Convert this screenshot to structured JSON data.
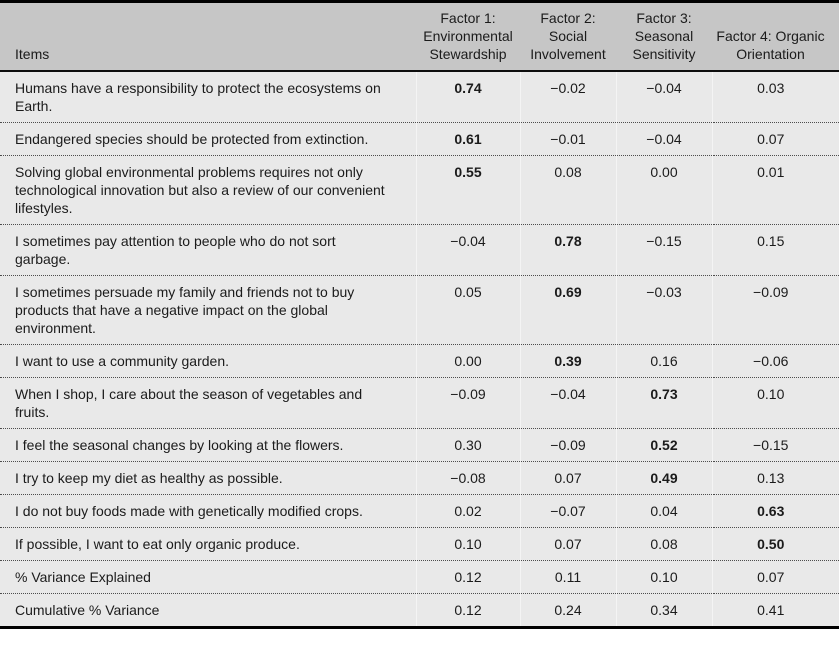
{
  "colors": {
    "header_bg": "#c6c6c6",
    "body_bg": "#e9e9e9",
    "rule": "#000000",
    "text": "#1b1b1b",
    "dotted": "#4d4d4d",
    "col_sep": "#f4f4f4"
  },
  "table": {
    "header": {
      "items_label": "Items",
      "factors": [
        "Factor 1: Environmental Stewardship",
        "Factor 2: Social Involvement",
        "Factor 3: Seasonal Sensitivity",
        "Factor 4: Organic Orientation"
      ]
    },
    "rows": [
      {
        "item": "Humans have a responsibility to protect the ecosystems on Earth.",
        "values": [
          "0.74",
          "−0.02",
          "−0.04",
          "0.03"
        ],
        "bold_col": 0
      },
      {
        "item": "Endangered species should be protected from extinc­tion.",
        "values": [
          "0.61",
          "−0.01",
          "−0.04",
          "0.07"
        ],
        "bold_col": 0
      },
      {
        "item": "Solving global environmental problems requires not only technological innovation but also a review of our convenient lifestyles.",
        "values": [
          "0.55",
          "0.08",
          "0.00",
          "0.01"
        ],
        "bold_col": 0
      },
      {
        "item": "I sometimes pay attention to people who do not sort garbage.",
        "values": [
          "−0.04",
          "0.78",
          "−0.15",
          "0.15"
        ],
        "bold_col": 1
      },
      {
        "item": "I sometimes persuade my family and friends not to buy products that have a negative impact on the global environment.",
        "values": [
          "0.05",
          "0.69",
          "−0.03",
          "−0.09"
        ],
        "bold_col": 1
      },
      {
        "item": "I want to use a community garden.",
        "values": [
          "0.00",
          "0.39",
          "0.16",
          "−0.06"
        ],
        "bold_col": 1
      },
      {
        "item": "When I shop, I care about the season of vegetables and fruits.",
        "values": [
          "−0.09",
          "−0.04",
          "0.73",
          "0.10"
        ],
        "bold_col": 2
      },
      {
        "item": "I feel the seasonal changes by looking at the flowers.",
        "values": [
          "0.30",
          "−0.09",
          "0.52",
          "−0.15"
        ],
        "bold_col": 2
      },
      {
        "item": "I try to keep my diet as healthy as possible.",
        "values": [
          "−0.08",
          "0.07",
          "0.49",
          "0.13"
        ],
        "bold_col": 2
      },
      {
        "item": "I do not buy foods made with genetically modified crops.",
        "values": [
          "0.02",
          "−0.07",
          "0.04",
          "0.63"
        ],
        "bold_col": 3
      },
      {
        "item": "If possible, I want to eat only organic produce.",
        "values": [
          "0.10",
          "0.07",
          "0.08",
          "0.50"
        ],
        "bold_col": 3
      },
      {
        "item": "% Variance Explained",
        "values": [
          "0.12",
          "0.11",
          "0.10",
          "0.07"
        ],
        "bold_col": null
      },
      {
        "item": "Cumulative % Variance",
        "values": [
          "0.12",
          "0.24",
          "0.34",
          "0.41"
        ],
        "bold_col": null
      }
    ]
  }
}
